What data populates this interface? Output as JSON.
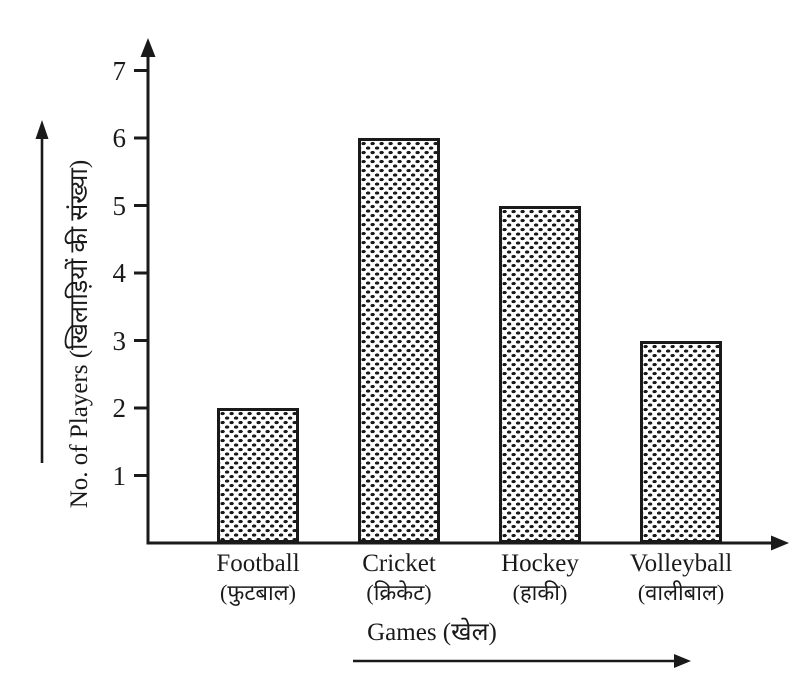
{
  "page": {
    "background": "#ffffff",
    "ink_color": "#1a1a1a"
  },
  "chart_data": {
    "type": "bar",
    "title": "",
    "categories": [
      "Football",
      "Cricket",
      "Hockey",
      "Volleyball"
    ],
    "categories_hindi": [
      "(फुटबाल)",
      "(क्रिकेट)",
      "(हाकी)",
      "(वालीबाल)"
    ],
    "values": [
      2,
      6,
      5,
      3
    ],
    "xlabel": "Games (खेल)",
    "ylabel": "No. of Players (खिलाड़ियों की संख्या)",
    "ylim": [
      0,
      7
    ],
    "yticks": [
      1,
      2,
      3,
      4,
      5,
      6,
      7
    ],
    "grid": false,
    "legend": "none",
    "bar_style": {
      "fill": "#ffffff",
      "pattern": "black-speckle-dots",
      "border": "#1a1a1a"
    },
    "axis_arrows": [
      "y-axis-up",
      "x-axis-right",
      "ylabel-up-arrow",
      "xlabel-right-arrow"
    ]
  }
}
